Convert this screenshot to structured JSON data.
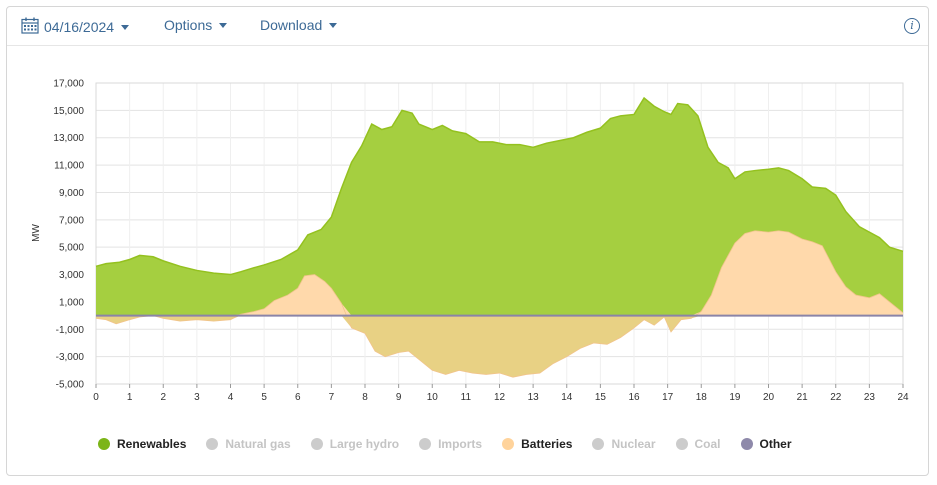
{
  "toolbar": {
    "date": "04/16/2024",
    "options_label": "Options",
    "download_label": "Download",
    "calendar_icon": "calendar-icon",
    "info_icon": "info-icon"
  },
  "colors": {
    "renewables": "#94c11f",
    "renewables_fill": "#a5cf40",
    "batteries": "#ffd9ab",
    "batteries_neg": "#e8d184",
    "other": "#8a84a8",
    "inactive": "#cccccc"
  },
  "legend": [
    {
      "label": "Renewables",
      "color": "#7cb518",
      "active": true
    },
    {
      "label": "Natural gas",
      "color": "#cccccc",
      "active": false
    },
    {
      "label": "Large hydro",
      "color": "#cccccc",
      "active": false
    },
    {
      "label": "Imports",
      "color": "#cccccc",
      "active": false
    },
    {
      "label": "Batteries",
      "color": "#ffd39b",
      "active": true
    },
    {
      "label": "Nuclear",
      "color": "#cccccc",
      "active": false
    },
    {
      "label": "Coal",
      "color": "#cccccc",
      "active": false
    },
    {
      "label": "Other",
      "color": "#8e89aa",
      "active": true
    }
  ],
  "chart_data": {
    "type": "area",
    "ylabel": "MW",
    "xlabel": "",
    "xlim": [
      0,
      24
    ],
    "ylim": [
      -5000,
      17000
    ],
    "x_ticks": [
      "0",
      "1",
      "2",
      "3",
      "4",
      "5",
      "6",
      "7",
      "8",
      "9",
      "10",
      "11",
      "12",
      "13",
      "14",
      "15",
      "16",
      "17",
      "18",
      "19",
      "20",
      "21",
      "22",
      "23",
      "24"
    ],
    "y_ticks": [
      "17,000",
      "15,000",
      "13,000",
      "11,000",
      "9,000",
      "7,000",
      "5,000",
      "3,000",
      "1,000",
      "-1,000",
      "-3,000",
      "-5,000"
    ],
    "grid": true,
    "legend_position": "bottom",
    "series": [
      {
        "name": "Renewables",
        "points": [
          [
            0,
            3600
          ],
          [
            0.3,
            3800
          ],
          [
            0.7,
            3900
          ],
          [
            1,
            4100
          ],
          [
            1.3,
            4400
          ],
          [
            1.7,
            4300
          ],
          [
            2,
            4000
          ],
          [
            2.5,
            3600
          ],
          [
            3,
            3300
          ],
          [
            3.5,
            3100
          ],
          [
            4,
            3000
          ],
          [
            4.3,
            3200
          ],
          [
            4.7,
            3500
          ],
          [
            5,
            3700
          ],
          [
            5.5,
            4100
          ],
          [
            6,
            4800
          ],
          [
            6.3,
            5900
          ],
          [
            6.7,
            6300
          ],
          [
            7,
            7200
          ],
          [
            7.3,
            9300
          ],
          [
            7.6,
            11200
          ],
          [
            7.9,
            12400
          ],
          [
            8.2,
            14000
          ],
          [
            8.5,
            13600
          ],
          [
            8.8,
            13800
          ],
          [
            9.1,
            15000
          ],
          [
            9.4,
            14800
          ],
          [
            9.6,
            14000
          ],
          [
            10,
            13600
          ],
          [
            10.3,
            13900
          ],
          [
            10.6,
            13500
          ],
          [
            11,
            13300
          ],
          [
            11.4,
            12700
          ],
          [
            11.8,
            12700
          ],
          [
            12.2,
            12500
          ],
          [
            12.6,
            12500
          ],
          [
            13,
            12300
          ],
          [
            13.4,
            12600
          ],
          [
            13.8,
            12800
          ],
          [
            14.2,
            13000
          ],
          [
            14.6,
            13400
          ],
          [
            15,
            13700
          ],
          [
            15.3,
            14400
          ],
          [
            15.6,
            14600
          ],
          [
            16,
            14700
          ],
          [
            16.3,
            15900
          ],
          [
            16.6,
            15300
          ],
          [
            16.9,
            14900
          ],
          [
            17.1,
            14700
          ],
          [
            17.3,
            15500
          ],
          [
            17.6,
            15400
          ],
          [
            17.9,
            14600
          ],
          [
            18.2,
            12300
          ],
          [
            18.5,
            11200
          ],
          [
            18.8,
            10800
          ],
          [
            19,
            10000
          ],
          [
            19.3,
            10500
          ],
          [
            19.6,
            10600
          ],
          [
            20,
            10700
          ],
          [
            20.3,
            10800
          ],
          [
            20.6,
            10600
          ],
          [
            21,
            10000
          ],
          [
            21.3,
            9400
          ],
          [
            21.7,
            9300
          ],
          [
            22,
            8800
          ],
          [
            22.3,
            7600
          ],
          [
            22.7,
            6500
          ],
          [
            23,
            6100
          ],
          [
            23.3,
            5700
          ],
          [
            23.6,
            5000
          ],
          [
            24,
            4700
          ]
        ]
      },
      {
        "name": "Batteries",
        "points": [
          [
            0,
            -200
          ],
          [
            0.3,
            -300
          ],
          [
            0.6,
            -600
          ],
          [
            1,
            -300
          ],
          [
            1.3,
            -100
          ],
          [
            1.7,
            0
          ],
          [
            2,
            -200
          ],
          [
            2.5,
            -400
          ],
          [
            3,
            -300
          ],
          [
            3.5,
            -400
          ],
          [
            4,
            -300
          ],
          [
            4.3,
            100
          ],
          [
            4.7,
            300
          ],
          [
            5,
            500
          ],
          [
            5.3,
            1100
          ],
          [
            5.7,
            1500
          ],
          [
            6,
            2000
          ],
          [
            6.2,
            2900
          ],
          [
            6.5,
            3000
          ],
          [
            6.8,
            2500
          ],
          [
            7,
            2000
          ],
          [
            7.3,
            900
          ],
          [
            7.6,
            -900
          ],
          [
            8,
            -1300
          ],
          [
            8.3,
            -2600
          ],
          [
            8.6,
            -3000
          ],
          [
            9,
            -2700
          ],
          [
            9.3,
            -2600
          ],
          [
            9.6,
            -3200
          ],
          [
            10,
            -4000
          ],
          [
            10.4,
            -4300
          ],
          [
            10.8,
            -4000
          ],
          [
            11.2,
            -4200
          ],
          [
            11.6,
            -4300
          ],
          [
            12,
            -4200
          ],
          [
            12.4,
            -4500
          ],
          [
            12.8,
            -4300
          ],
          [
            13.2,
            -4200
          ],
          [
            13.6,
            -3500
          ],
          [
            14,
            -3000
          ],
          [
            14.4,
            -2400
          ],
          [
            14.8,
            -2000
          ],
          [
            15.2,
            -2100
          ],
          [
            15.6,
            -1600
          ],
          [
            16,
            -900
          ],
          [
            16.3,
            -300
          ],
          [
            16.6,
            -700
          ],
          [
            16.9,
            -100
          ],
          [
            17.1,
            -1200
          ],
          [
            17.4,
            -300
          ],
          [
            17.7,
            -200
          ],
          [
            18,
            300
          ],
          [
            18.3,
            1500
          ],
          [
            18.6,
            3500
          ],
          [
            19,
            5300
          ],
          [
            19.3,
            6000
          ],
          [
            19.6,
            6200
          ],
          [
            20,
            6100
          ],
          [
            20.3,
            6200
          ],
          [
            20.6,
            6100
          ],
          [
            21,
            5600
          ],
          [
            21.3,
            5400
          ],
          [
            21.6,
            5100
          ],
          [
            22,
            3200
          ],
          [
            22.3,
            2100
          ],
          [
            22.6,
            1500
          ],
          [
            23,
            1300
          ],
          [
            23.3,
            1600
          ],
          [
            23.6,
            1000
          ],
          [
            24,
            200
          ]
        ]
      },
      {
        "name": "Other",
        "points": [
          [
            0,
            0
          ],
          [
            24,
            0
          ]
        ]
      }
    ]
  }
}
